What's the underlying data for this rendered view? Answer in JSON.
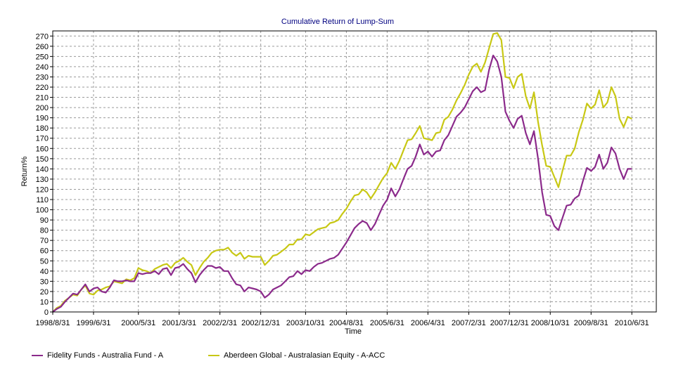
{
  "chart_data": {
    "type": "line",
    "title": "Cumulative Return of Lump-Sum",
    "xlabel": "Time",
    "ylabel": "Return%",
    "ylim": [
      0,
      275
    ],
    "y_ticks": [
      0,
      10,
      20,
      30,
      40,
      50,
      60,
      70,
      80,
      90,
      100,
      110,
      120,
      130,
      140,
      150,
      160,
      170,
      180,
      190,
      200,
      210,
      220,
      230,
      240,
      250,
      260,
      270
    ],
    "x_range": [
      1998.667,
      2011.0
    ],
    "x_tick_labels": [
      {
        "x": 1998.667,
        "label": "1998/8/31"
      },
      {
        "x": 1999.5,
        "label": "1999/6/31"
      },
      {
        "x": 2000.417,
        "label": "2000/5/31"
      },
      {
        "x": 2001.25,
        "label": "2001/3/31"
      },
      {
        "x": 2002.083,
        "label": "2002/2/31"
      },
      {
        "x": 2002.917,
        "label": "2002/12/31"
      },
      {
        "x": 2003.833,
        "label": "2003/10/31"
      },
      {
        "x": 2004.667,
        "label": "2004/8/31"
      },
      {
        "x": 2005.5,
        "label": "2005/6/31"
      },
      {
        "x": 2006.333,
        "label": "2006/4/31"
      },
      {
        "x": 2007.167,
        "label": "2007/2/31"
      },
      {
        "x": 2008.0,
        "label": "2007/12/31"
      },
      {
        "x": 2008.833,
        "label": "2008/10/31"
      },
      {
        "x": 2009.667,
        "label": "2009/8/31"
      },
      {
        "x": 2010.5,
        "label": "2010/6/31"
      }
    ],
    "grid": true,
    "legend_position": "bottom",
    "series": [
      {
        "name": "Fidelity Funds - Australia Fund - A",
        "color": "#8B2A8B",
        "points": [
          [
            1998.667,
            0
          ],
          [
            1998.75,
            3
          ],
          [
            1998.833,
            5
          ],
          [
            1998.917,
            10
          ],
          [
            1999.0,
            14
          ],
          [
            1999.083,
            18
          ],
          [
            1999.167,
            17
          ],
          [
            1999.25,
            22
          ],
          [
            1999.333,
            27
          ],
          [
            1999.417,
            20
          ],
          [
            1999.5,
            23
          ],
          [
            1999.583,
            24
          ],
          [
            1999.667,
            20
          ],
          [
            1999.75,
            19
          ],
          [
            1999.833,
            24
          ],
          [
            1999.917,
            31
          ],
          [
            2000.0,
            30
          ],
          [
            2000.083,
            30
          ],
          [
            2000.167,
            31
          ],
          [
            2000.25,
            30
          ],
          [
            2000.333,
            30
          ],
          [
            2000.417,
            38
          ],
          [
            2000.5,
            37
          ],
          [
            2000.583,
            38
          ],
          [
            2000.667,
            38
          ],
          [
            2000.75,
            40
          ],
          [
            2000.833,
            37
          ],
          [
            2000.917,
            42
          ],
          [
            2001.0,
            43
          ],
          [
            2001.083,
            36
          ],
          [
            2001.167,
            43
          ],
          [
            2001.25,
            44
          ],
          [
            2001.333,
            47
          ],
          [
            2001.417,
            42
          ],
          [
            2001.5,
            38
          ],
          [
            2001.583,
            29
          ],
          [
            2001.667,
            36
          ],
          [
            2001.75,
            41
          ],
          [
            2001.833,
            45
          ],
          [
            2001.917,
            45
          ],
          [
            2002.0,
            43
          ],
          [
            2002.083,
            44
          ],
          [
            2002.167,
            40
          ],
          [
            2002.25,
            40
          ],
          [
            2002.333,
            33
          ],
          [
            2002.417,
            27
          ],
          [
            2002.5,
            26
          ],
          [
            2002.583,
            20
          ],
          [
            2002.667,
            24
          ],
          [
            2002.75,
            23
          ],
          [
            2002.833,
            22
          ],
          [
            2002.917,
            20
          ],
          [
            2003.0,
            14
          ],
          [
            2003.083,
            17
          ],
          [
            2003.167,
            22
          ],
          [
            2003.25,
            24
          ],
          [
            2003.333,
            26
          ],
          [
            2003.417,
            30
          ],
          [
            2003.5,
            34
          ],
          [
            2003.583,
            35
          ],
          [
            2003.667,
            40
          ],
          [
            2003.75,
            37
          ],
          [
            2003.833,
            41
          ],
          [
            2003.917,
            40
          ],
          [
            2004.0,
            44
          ],
          [
            2004.083,
            47
          ],
          [
            2004.167,
            48
          ],
          [
            2004.25,
            50
          ],
          [
            2004.333,
            52
          ],
          [
            2004.417,
            53
          ],
          [
            2004.5,
            56
          ],
          [
            2004.583,
            62
          ],
          [
            2004.667,
            68
          ],
          [
            2004.75,
            75
          ],
          [
            2004.833,
            82
          ],
          [
            2004.917,
            86
          ],
          [
            2005.0,
            89
          ],
          [
            2005.083,
            87
          ],
          [
            2005.167,
            80
          ],
          [
            2005.25,
            86
          ],
          [
            2005.333,
            95
          ],
          [
            2005.417,
            104
          ],
          [
            2005.5,
            110
          ],
          [
            2005.583,
            121
          ],
          [
            2005.667,
            113
          ],
          [
            2005.75,
            120
          ],
          [
            2005.833,
            130
          ],
          [
            2005.917,
            140
          ],
          [
            2006.0,
            143
          ],
          [
            2006.083,
            152
          ],
          [
            2006.167,
            164
          ],
          [
            2006.25,
            154
          ],
          [
            2006.333,
            157
          ],
          [
            2006.417,
            152
          ],
          [
            2006.5,
            157
          ],
          [
            2006.583,
            158
          ],
          [
            2006.667,
            168
          ],
          [
            2006.75,
            173
          ],
          [
            2006.833,
            182
          ],
          [
            2006.917,
            191
          ],
          [
            2007.0,
            195
          ],
          [
            2007.083,
            200
          ],
          [
            2007.167,
            208
          ],
          [
            2007.25,
            216
          ],
          [
            2007.333,
            220
          ],
          [
            2007.417,
            215
          ],
          [
            2007.5,
            217
          ],
          [
            2007.583,
            237
          ],
          [
            2007.667,
            251
          ],
          [
            2007.75,
            245
          ],
          [
            2007.833,
            230
          ],
          [
            2007.917,
            196
          ],
          [
            2008.0,
            187
          ],
          [
            2008.083,
            180
          ],
          [
            2008.167,
            189
          ],
          [
            2008.25,
            192
          ],
          [
            2008.333,
            175
          ],
          [
            2008.417,
            164
          ],
          [
            2008.5,
            177
          ],
          [
            2008.583,
            150
          ],
          [
            2008.667,
            117
          ],
          [
            2008.75,
            95
          ],
          [
            2008.833,
            94
          ],
          [
            2008.917,
            84
          ],
          [
            2009.0,
            80
          ],
          [
            2009.083,
            92
          ],
          [
            2009.167,
            104
          ],
          [
            2009.25,
            105
          ],
          [
            2009.333,
            111
          ],
          [
            2009.417,
            114
          ],
          [
            2009.5,
            128
          ],
          [
            2009.583,
            141
          ],
          [
            2009.667,
            138
          ],
          [
            2009.75,
            142
          ],
          [
            2009.833,
            154
          ],
          [
            2009.917,
            140
          ],
          [
            2010.0,
            146
          ],
          [
            2010.083,
            161
          ],
          [
            2010.167,
            155
          ],
          [
            2010.25,
            140
          ],
          [
            2010.333,
            130
          ],
          [
            2010.417,
            140
          ],
          [
            2010.5,
            140
          ]
        ]
      },
      {
        "name": "Aberdeen Global - Australasian Equity - A-ACC",
        "color": "#C8C814",
        "points": [
          [
            1998.667,
            0
          ],
          [
            1998.75,
            4
          ],
          [
            1998.833,
            6
          ],
          [
            1998.917,
            11
          ],
          [
            1999.0,
            14
          ],
          [
            1999.083,
            17
          ],
          [
            1999.167,
            16
          ],
          [
            1999.25,
            22
          ],
          [
            1999.333,
            26
          ],
          [
            1999.417,
            18
          ],
          [
            1999.5,
            17
          ],
          [
            1999.583,
            21
          ],
          [
            1999.667,
            22
          ],
          [
            1999.75,
            24
          ],
          [
            1999.833,
            25
          ],
          [
            1999.917,
            30
          ],
          [
            2000.0,
            29
          ],
          [
            2000.083,
            28
          ],
          [
            2000.167,
            32
          ],
          [
            2000.25,
            31
          ],
          [
            2000.333,
            33
          ],
          [
            2000.417,
            43
          ],
          [
            2000.5,
            41
          ],
          [
            2000.583,
            40
          ],
          [
            2000.667,
            38
          ],
          [
            2000.75,
            42
          ],
          [
            2000.833,
            44
          ],
          [
            2000.917,
            46
          ],
          [
            2001.0,
            47
          ],
          [
            2001.083,
            43
          ],
          [
            2001.167,
            48
          ],
          [
            2001.25,
            50
          ],
          [
            2001.333,
            53
          ],
          [
            2001.417,
            49
          ],
          [
            2001.5,
            46
          ],
          [
            2001.583,
            36
          ],
          [
            2001.667,
            43
          ],
          [
            2001.75,
            49
          ],
          [
            2001.833,
            53
          ],
          [
            2001.917,
            58
          ],
          [
            2002.0,
            60
          ],
          [
            2002.083,
            61
          ],
          [
            2002.167,
            61
          ],
          [
            2002.25,
            63
          ],
          [
            2002.333,
            58
          ],
          [
            2002.417,
            55
          ],
          [
            2002.5,
            58
          ],
          [
            2002.583,
            52
          ],
          [
            2002.667,
            55
          ],
          [
            2002.75,
            54
          ],
          [
            2002.833,
            54
          ],
          [
            2002.917,
            54
          ],
          [
            2003.0,
            46
          ],
          [
            2003.083,
            50
          ],
          [
            2003.167,
            55
          ],
          [
            2003.25,
            56
          ],
          [
            2003.333,
            59
          ],
          [
            2003.417,
            62
          ],
          [
            2003.5,
            66
          ],
          [
            2003.583,
            66
          ],
          [
            2003.667,
            71
          ],
          [
            2003.75,
            71
          ],
          [
            2003.833,
            76
          ],
          [
            2003.917,
            75
          ],
          [
            2004.0,
            78
          ],
          [
            2004.083,
            81
          ],
          [
            2004.167,
            82
          ],
          [
            2004.25,
            83
          ],
          [
            2004.333,
            87
          ],
          [
            2004.417,
            88
          ],
          [
            2004.5,
            90
          ],
          [
            2004.583,
            96
          ],
          [
            2004.667,
            101
          ],
          [
            2004.75,
            108
          ],
          [
            2004.833,
            114
          ],
          [
            2004.917,
            115
          ],
          [
            2005.0,
            120
          ],
          [
            2005.083,
            117
          ],
          [
            2005.167,
            111
          ],
          [
            2005.25,
            117
          ],
          [
            2005.333,
            124
          ],
          [
            2005.417,
            131
          ],
          [
            2005.5,
            136
          ],
          [
            2005.583,
            146
          ],
          [
            2005.667,
            140
          ],
          [
            2005.75,
            148
          ],
          [
            2005.833,
            158
          ],
          [
            2005.917,
            168
          ],
          [
            2006.0,
            169
          ],
          [
            2006.083,
            175
          ],
          [
            2006.167,
            182
          ],
          [
            2006.25,
            170
          ],
          [
            2006.333,
            169
          ],
          [
            2006.417,
            168
          ],
          [
            2006.5,
            175
          ],
          [
            2006.583,
            176
          ],
          [
            2006.667,
            188
          ],
          [
            2006.75,
            191
          ],
          [
            2006.833,
            198
          ],
          [
            2006.917,
            207
          ],
          [
            2007.0,
            214
          ],
          [
            2007.083,
            222
          ],
          [
            2007.167,
            232
          ],
          [
            2007.25,
            240
          ],
          [
            2007.333,
            243
          ],
          [
            2007.417,
            235
          ],
          [
            2007.5,
            244
          ],
          [
            2007.583,
            258
          ],
          [
            2007.667,
            272
          ],
          [
            2007.75,
            273
          ],
          [
            2007.833,
            266
          ],
          [
            2007.917,
            230
          ],
          [
            2008.0,
            229
          ],
          [
            2008.083,
            219
          ],
          [
            2008.167,
            230
          ],
          [
            2008.25,
            233
          ],
          [
            2008.333,
            211
          ],
          [
            2008.417,
            199
          ],
          [
            2008.5,
            215
          ],
          [
            2008.583,
            186
          ],
          [
            2008.667,
            163
          ],
          [
            2008.75,
            143
          ],
          [
            2008.833,
            142
          ],
          [
            2008.917,
            132
          ],
          [
            2009.0,
            122
          ],
          [
            2009.083,
            138
          ],
          [
            2009.167,
            153
          ],
          [
            2009.25,
            153
          ],
          [
            2009.333,
            160
          ],
          [
            2009.417,
            176
          ],
          [
            2009.5,
            188
          ],
          [
            2009.583,
            204
          ],
          [
            2009.667,
            199
          ],
          [
            2009.75,
            203
          ],
          [
            2009.833,
            217
          ],
          [
            2009.917,
            200
          ],
          [
            2010.0,
            205
          ],
          [
            2010.083,
            220
          ],
          [
            2010.167,
            211
          ],
          [
            2010.25,
            189
          ],
          [
            2010.333,
            181
          ],
          [
            2010.417,
            191
          ],
          [
            2010.5,
            189
          ]
        ]
      }
    ]
  }
}
